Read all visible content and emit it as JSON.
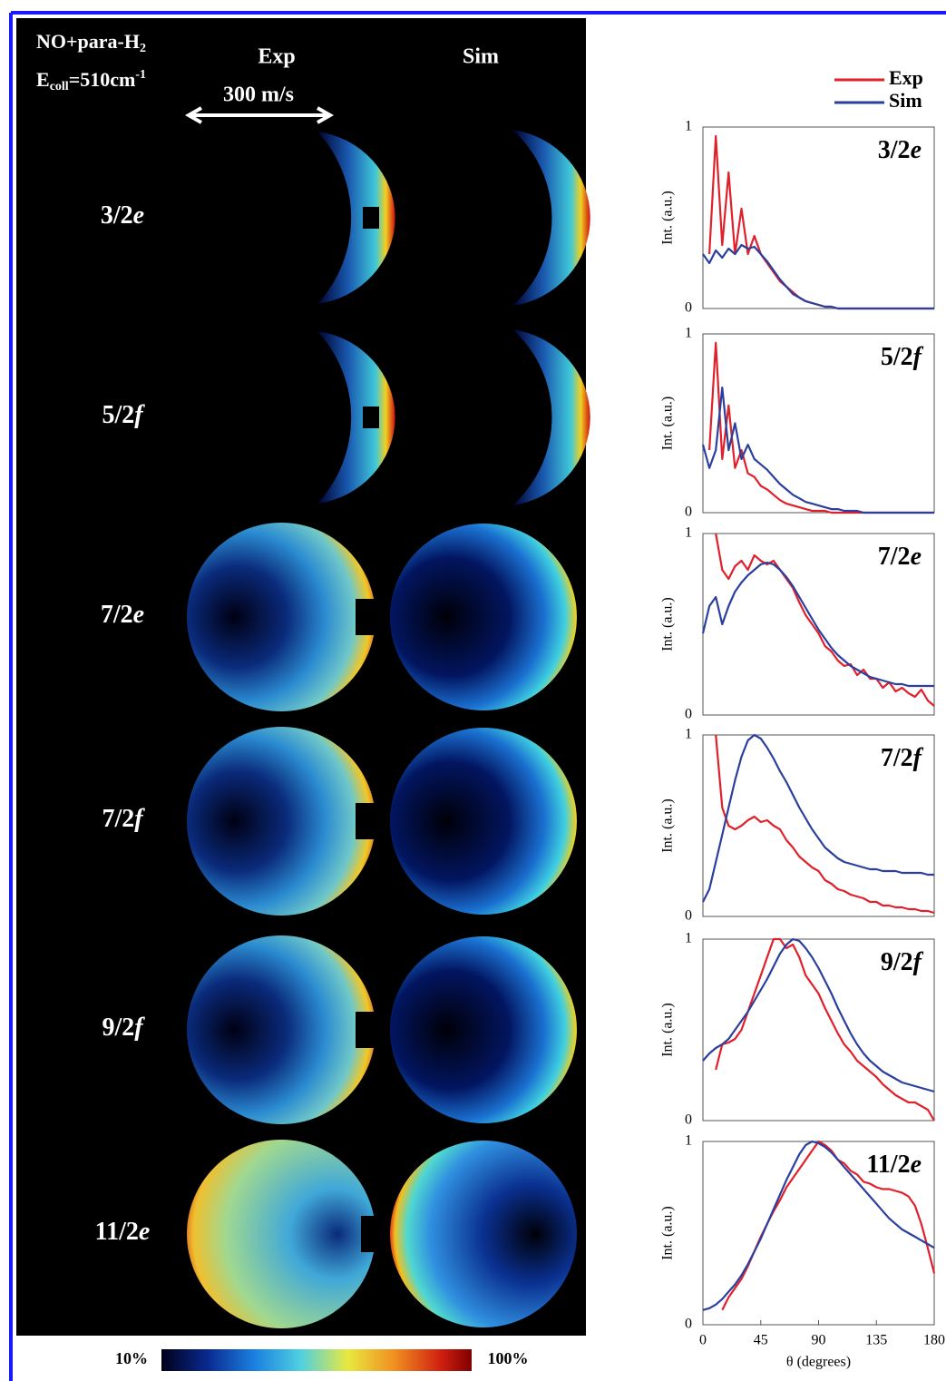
{
  "figure": {
    "reactant": {
      "text": "NO+para-H",
      "sub": "2"
    },
    "energy": {
      "symbol": "E",
      "sub": "coll",
      "text": "=510cm",
      "sup": "-1"
    },
    "columns": [
      "Exp",
      "Sim"
    ],
    "scale": "300 m/s",
    "rows": [
      {
        "j": "3/2",
        "parity": "e"
      },
      {
        "j": "5/2",
        "parity": "f"
      },
      {
        "j": "7/2",
        "parity": "e"
      },
      {
        "j": "7/2",
        "parity": "f"
      },
      {
        "j": "9/2",
        "parity": "f"
      },
      {
        "j": "11/2",
        "parity": "e"
      }
    ],
    "colorbar": {
      "min": "10%",
      "max": "100%"
    }
  },
  "chart_data": [
    {
      "type": "line",
      "title": {
        "j": "3/2",
        "parity": "e"
      },
      "ylabel": "Int. (a.u.)",
      "xlim": [
        0,
        180
      ],
      "ylim": [
        0,
        1
      ],
      "yticks": [
        0,
        1
      ],
      "legend": "top-right",
      "x": [
        0,
        5,
        10,
        15,
        20,
        25,
        30,
        35,
        40,
        45,
        50,
        55,
        60,
        65,
        70,
        75,
        80,
        85,
        90,
        95,
        100,
        105,
        110,
        115,
        120,
        125,
        130,
        135,
        140,
        145,
        150,
        155,
        160,
        165,
        170,
        175,
        180
      ],
      "series": [
        {
          "name": "Exp",
          "color": "#e0202a",
          "values": [
            null,
            0.3,
            0.95,
            0.35,
            0.75,
            0.3,
            0.55,
            0.3,
            0.4,
            0.3,
            0.25,
            0.2,
            0.15,
            0.12,
            0.09,
            0.06,
            0.04,
            0.03,
            0.02,
            0.01,
            0.01,
            0,
            0,
            0,
            0,
            0,
            0,
            0,
            0,
            0,
            0,
            0,
            0,
            0,
            0,
            0,
            0
          ]
        },
        {
          "name": "Sim",
          "color": "#2a3f9e",
          "values": [
            0.3,
            0.25,
            0.32,
            0.28,
            0.33,
            0.3,
            0.35,
            0.33,
            0.34,
            0.3,
            0.26,
            0.21,
            0.16,
            0.12,
            0.08,
            0.06,
            0.04,
            0.03,
            0.02,
            0.01,
            0.01,
            0,
            0,
            0,
            0,
            0,
            0,
            0,
            0,
            0,
            0,
            0,
            0,
            0,
            0,
            0,
            0
          ]
        }
      ]
    },
    {
      "type": "line",
      "title": {
        "j": "5/2",
        "parity": "f"
      },
      "ylabel": "Int. (a.u.)",
      "xlim": [
        0,
        180
      ],
      "ylim": [
        0,
        1
      ],
      "yticks": [
        0,
        1
      ],
      "x": [
        0,
        5,
        10,
        15,
        20,
        25,
        30,
        35,
        40,
        45,
        50,
        55,
        60,
        65,
        70,
        75,
        80,
        85,
        90,
        95,
        100,
        105,
        110,
        115,
        120,
        125,
        130,
        135,
        140,
        145,
        150,
        155,
        160,
        165,
        170,
        175,
        180
      ],
      "series": [
        {
          "color": "#e0202a",
          "values": [
            null,
            0.35,
            0.95,
            0.3,
            0.6,
            0.25,
            0.35,
            0.22,
            0.2,
            0.15,
            0.13,
            0.1,
            0.07,
            0.05,
            0.04,
            0.03,
            0.02,
            0.01,
            0.01,
            0.01,
            0,
            0,
            0,
            0,
            0,
            0,
            0,
            0,
            0,
            0,
            0,
            0,
            0,
            0,
            0,
            0,
            0
          ]
        },
        {
          "color": "#2a3f9e",
          "values": [
            0.38,
            0.25,
            0.35,
            0.7,
            0.35,
            0.5,
            0.3,
            0.38,
            0.3,
            0.27,
            0.24,
            0.2,
            0.16,
            0.13,
            0.1,
            0.08,
            0.06,
            0.05,
            0.04,
            0.03,
            0.02,
            0.02,
            0.01,
            0.01,
            0.01,
            0,
            0,
            0,
            0,
            0,
            0,
            0,
            0,
            0,
            0,
            0,
            0
          ]
        }
      ]
    },
    {
      "type": "line",
      "title": {
        "j": "7/2",
        "parity": "e"
      },
      "ylabel": "Int. (a.u.)",
      "xlim": [
        0,
        180
      ],
      "ylim": [
        0,
        1
      ],
      "yticks": [
        0,
        1
      ],
      "x": [
        0,
        5,
        10,
        15,
        20,
        25,
        30,
        35,
        40,
        45,
        50,
        55,
        60,
        65,
        70,
        75,
        80,
        85,
        90,
        95,
        100,
        105,
        110,
        115,
        120,
        125,
        130,
        135,
        140,
        145,
        150,
        155,
        160,
        165,
        170,
        175,
        180
      ],
      "series": [
        {
          "color": "#e0202a",
          "values": [
            null,
            null,
            1.0,
            0.8,
            0.75,
            0.82,
            0.85,
            0.8,
            0.88,
            0.85,
            0.83,
            0.85,
            0.8,
            0.75,
            0.7,
            0.62,
            0.55,
            0.5,
            0.45,
            0.38,
            0.35,
            0.3,
            0.27,
            0.28,
            0.22,
            0.25,
            0.2,
            0.2,
            0.15,
            0.18,
            0.13,
            0.15,
            0.12,
            0.1,
            0.14,
            0.08,
            0.05
          ]
        },
        {
          "color": "#2a3f9e",
          "values": [
            0.45,
            0.6,
            0.65,
            0.5,
            0.6,
            0.68,
            0.73,
            0.77,
            0.8,
            0.83,
            0.84,
            0.83,
            0.8,
            0.76,
            0.71,
            0.65,
            0.59,
            0.53,
            0.47,
            0.42,
            0.37,
            0.33,
            0.3,
            0.27,
            0.25,
            0.23,
            0.21,
            0.2,
            0.19,
            0.18,
            0.17,
            0.17,
            0.16,
            0.16,
            0.16,
            0.16,
            0.16
          ]
        }
      ]
    },
    {
      "type": "line",
      "title": {
        "j": "7/2",
        "parity": "f"
      },
      "ylabel": "Int. (a.u.)",
      "xlim": [
        0,
        180
      ],
      "ylim": [
        0,
        1
      ],
      "yticks": [
        0,
        1
      ],
      "x": [
        0,
        5,
        10,
        15,
        20,
        25,
        30,
        35,
        40,
        45,
        50,
        55,
        60,
        65,
        70,
        75,
        80,
        85,
        90,
        95,
        100,
        105,
        110,
        115,
        120,
        125,
        130,
        135,
        140,
        145,
        150,
        155,
        160,
        165,
        170,
        175,
        180
      ],
      "series": [
        {
          "color": "#e0202a",
          "values": [
            null,
            null,
            1.0,
            0.6,
            0.5,
            0.48,
            0.5,
            0.53,
            0.55,
            0.52,
            0.53,
            0.5,
            0.48,
            0.42,
            0.38,
            0.33,
            0.3,
            0.27,
            0.25,
            0.2,
            0.18,
            0.15,
            0.14,
            0.12,
            0.11,
            0.1,
            0.08,
            0.08,
            0.06,
            0.06,
            0.05,
            0.05,
            0.04,
            0.04,
            0.03,
            0.03,
            0.02
          ]
        },
        {
          "color": "#2a3f9e",
          "values": [
            0.08,
            0.15,
            0.3,
            0.45,
            0.6,
            0.75,
            0.88,
            0.97,
            1.0,
            0.98,
            0.93,
            0.87,
            0.8,
            0.74,
            0.67,
            0.6,
            0.54,
            0.48,
            0.43,
            0.38,
            0.35,
            0.32,
            0.3,
            0.29,
            0.28,
            0.27,
            0.26,
            0.26,
            0.25,
            0.25,
            0.25,
            0.24,
            0.24,
            0.24,
            0.24,
            0.23,
            0.23
          ]
        }
      ]
    },
    {
      "type": "line",
      "title": {
        "j": "9/2",
        "parity": "f"
      },
      "ylabel": "Int. (a.u.)",
      "xlim": [
        0,
        180
      ],
      "ylim": [
        0,
        1
      ],
      "yticks": [
        0,
        1
      ],
      "x": [
        0,
        5,
        10,
        15,
        20,
        25,
        30,
        35,
        40,
        45,
        50,
        55,
        60,
        65,
        70,
        75,
        80,
        85,
        90,
        95,
        100,
        105,
        110,
        115,
        120,
        125,
        130,
        135,
        140,
        145,
        150,
        155,
        160,
        165,
        170,
        175,
        180
      ],
      "series": [
        {
          "color": "#e0202a",
          "values": [
            null,
            null,
            0.28,
            0.42,
            0.43,
            0.45,
            0.5,
            0.6,
            0.7,
            0.8,
            0.9,
            1.0,
            1.0,
            0.95,
            0.97,
            0.9,
            0.8,
            0.75,
            0.7,
            0.62,
            0.55,
            0.48,
            0.42,
            0.38,
            0.33,
            0.3,
            0.27,
            0.24,
            0.2,
            0.17,
            0.14,
            0.12,
            0.1,
            0.1,
            0.08,
            0.06,
            0.0
          ]
        },
        {
          "color": "#2a3f9e",
          "values": [
            0.33,
            0.37,
            0.4,
            0.42,
            0.45,
            0.5,
            0.55,
            0.6,
            0.66,
            0.72,
            0.78,
            0.85,
            0.92,
            0.97,
            1.0,
            0.99,
            0.95,
            0.9,
            0.84,
            0.77,
            0.7,
            0.62,
            0.55,
            0.48,
            0.42,
            0.37,
            0.33,
            0.3,
            0.27,
            0.25,
            0.23,
            0.21,
            0.2,
            0.19,
            0.18,
            0.17,
            0.16
          ]
        }
      ]
    },
    {
      "type": "line",
      "title": {
        "j": "11/2",
        "parity": "e"
      },
      "ylabel": "Int. (a.u.)",
      "xlabel": "θ (degrees)",
      "xlim": [
        0,
        180
      ],
      "ylim": [
        0,
        1
      ],
      "yticks": [
        0,
        1
      ],
      "xticks": [
        0,
        45,
        90,
        135,
        180
      ],
      "x": [
        0,
        5,
        10,
        15,
        20,
        25,
        30,
        35,
        40,
        45,
        50,
        55,
        60,
        65,
        70,
        75,
        80,
        85,
        90,
        95,
        100,
        105,
        110,
        115,
        120,
        125,
        130,
        135,
        140,
        145,
        150,
        155,
        160,
        165,
        170,
        175,
        180
      ],
      "series": [
        {
          "color": "#e0202a",
          "values": [
            null,
            null,
            null,
            0.08,
            0.15,
            0.2,
            0.25,
            0.32,
            0.4,
            0.48,
            0.55,
            0.62,
            0.68,
            0.75,
            0.8,
            0.85,
            0.9,
            0.95,
            1.0,
            0.98,
            0.95,
            0.9,
            0.88,
            0.84,
            0.82,
            0.78,
            0.77,
            0.75,
            0.74,
            0.74,
            0.73,
            0.72,
            0.7,
            0.65,
            0.55,
            0.42,
            0.28
          ]
        },
        {
          "color": "#2a3f9e",
          "values": [
            0.08,
            0.09,
            0.11,
            0.14,
            0.18,
            0.22,
            0.27,
            0.33,
            0.4,
            0.47,
            0.55,
            0.63,
            0.71,
            0.79,
            0.86,
            0.93,
            0.98,
            1.0,
            0.99,
            0.97,
            0.94,
            0.9,
            0.86,
            0.82,
            0.78,
            0.74,
            0.7,
            0.66,
            0.62,
            0.58,
            0.55,
            0.52,
            0.5,
            0.48,
            0.46,
            0.44,
            0.42
          ]
        }
      ]
    }
  ]
}
